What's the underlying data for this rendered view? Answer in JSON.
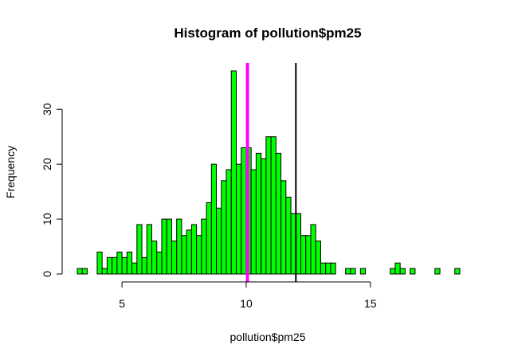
{
  "chart_data": {
    "type": "bar",
    "title": "Histogram of pollution$pm25",
    "xlabel": "pollution$pm25",
    "ylabel": "Frequency",
    "bin_width": 0.2,
    "bins_start": [
      3.2,
      3.4,
      3.6,
      3.8,
      4.0,
      4.2,
      4.4,
      4.6,
      4.8,
      5.0,
      5.2,
      5.4,
      5.6,
      5.8,
      6.0,
      6.2,
      6.4,
      6.6,
      6.8,
      7.0,
      7.2,
      7.4,
      7.6,
      7.8,
      8.0,
      8.2,
      8.4,
      8.6,
      8.8,
      9.0,
      9.2,
      9.4,
      9.6,
      9.8,
      10.0,
      10.2,
      10.4,
      10.6,
      10.8,
      11.0,
      11.2,
      11.4,
      11.6,
      11.8,
      12.0,
      12.2,
      12.4,
      12.6,
      12.8,
      13.0,
      13.2,
      13.4,
      13.6,
      13.8,
      14.0,
      14.2,
      14.4,
      14.6,
      14.8,
      15.0,
      15.2,
      15.4,
      15.6,
      15.8,
      16.0,
      16.2,
      16.4,
      16.6,
      16.8,
      17.0,
      17.2,
      17.4,
      17.6,
      17.8,
      18.0,
      18.2,
      18.4
    ],
    "values": [
      1,
      1,
      0,
      0,
      4,
      1,
      3,
      3,
      4,
      3,
      4,
      2,
      9,
      3,
      9,
      6,
      4,
      10,
      10,
      6,
      10,
      7,
      8,
      9,
      7,
      10,
      13,
      20,
      12,
      17,
      19,
      37,
      20,
      23,
      23,
      19,
      22,
      21,
      25,
      25,
      22,
      17,
      14,
      11,
      11,
      7,
      7,
      9,
      6,
      2,
      2,
      2,
      0,
      0,
      1,
      1,
      0,
      1,
      0,
      0,
      0,
      0,
      0,
      1,
      2,
      1,
      0,
      1,
      0,
      0,
      0,
      0,
      1,
      0,
      0,
      0,
      1
    ],
    "xlim": [
      3.2,
      18.6
    ],
    "ylim": [
      0,
      37
    ],
    "xticks": [
      5,
      10,
      15
    ],
    "xtick_labels": [
      "5",
      "10",
      "15"
    ],
    "yticks": [
      0,
      10,
      20,
      30
    ],
    "ytick_labels": [
      "0",
      "10",
      "20",
      "30"
    ],
    "bar_color": "#00ff00",
    "bar_edge_color": "#000000",
    "vlines": [
      {
        "x": 10.05,
        "color": "#ff00ff",
        "width": "thick"
      },
      {
        "x": 12.0,
        "color": "#000000",
        "width": "normal"
      }
    ],
    "grid": false
  }
}
